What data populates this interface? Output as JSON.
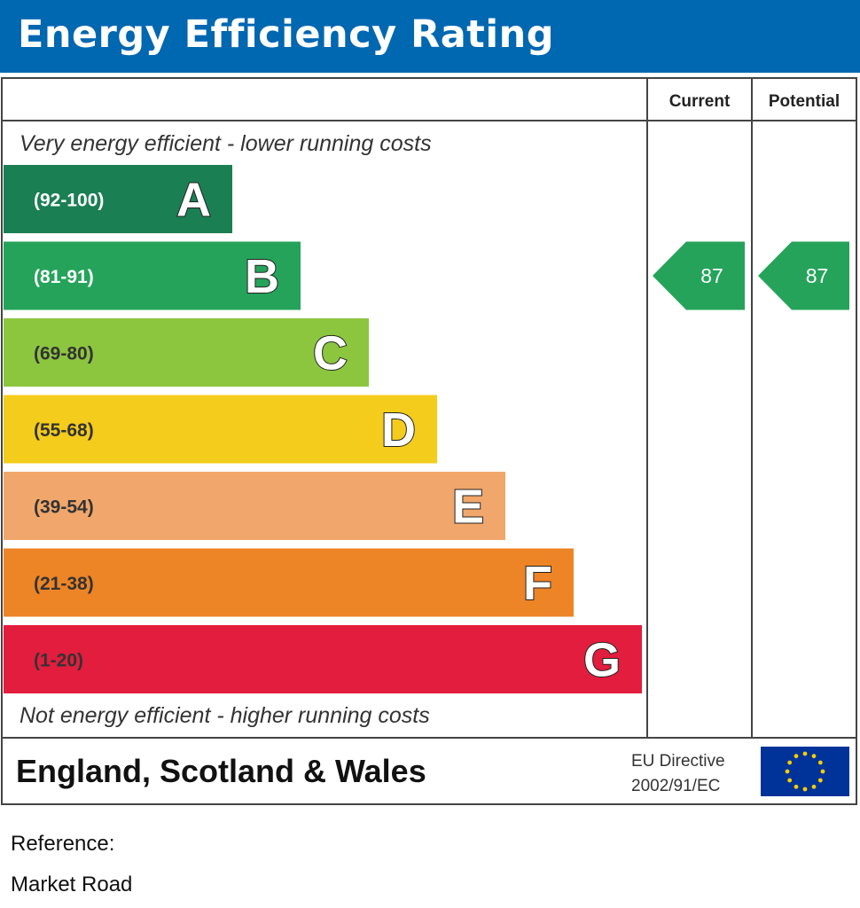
{
  "header": {
    "title": "Energy Efficiency Rating"
  },
  "chart_data": {
    "type": "bar",
    "title": "Energy Efficiency Rating",
    "columns": [
      "Current",
      "Potential"
    ],
    "top_caption": "Very energy efficient - lower running costs",
    "bottom_caption": "Not energy efficient - higher running costs",
    "bands": [
      {
        "letter": "A",
        "range": "(92-100)",
        "min": 92,
        "max": 100,
        "color": "#1a7f53",
        "label_color": "#ffffff"
      },
      {
        "letter": "B",
        "range": "(81-91)",
        "min": 81,
        "max": 91,
        "color": "#25a35a",
        "label_color": "#ffffff"
      },
      {
        "letter": "C",
        "range": "(69-80)",
        "min": 69,
        "max": 80,
        "color": "#8cc63f",
        "label_color": "#333333"
      },
      {
        "letter": "D",
        "range": "(55-68)",
        "min": 55,
        "max": 68,
        "color": "#f4cc1b",
        "label_color": "#333333"
      },
      {
        "letter": "E",
        "range": "(39-54)",
        "min": 39,
        "max": 54,
        "color": "#f1a76b",
        "label_color": "#333333"
      },
      {
        "letter": "F",
        "range": "(21-38)",
        "min": 21,
        "max": 38,
        "color": "#ed8426",
        "label_color": "#333333"
      },
      {
        "letter": "G",
        "range": "(1-20)",
        "min": 1,
        "max": 20,
        "color": "#e31d3d",
        "label_color": "#333333"
      }
    ],
    "current": {
      "value": 87,
      "display": "87",
      "band": "B"
    },
    "potential": {
      "value": 87,
      "display": "87",
      "band": "B"
    },
    "rating_arrow_color": "#25a35a"
  },
  "footer": {
    "region": "England, Scotland & Wales",
    "directive_line1": "EU Directive",
    "directive_line2": "2002/91/EC",
    "flag_color": "#003399",
    "star_color": "#ffcc00"
  },
  "reference": {
    "label": "Reference:",
    "address": "Market Road"
  }
}
